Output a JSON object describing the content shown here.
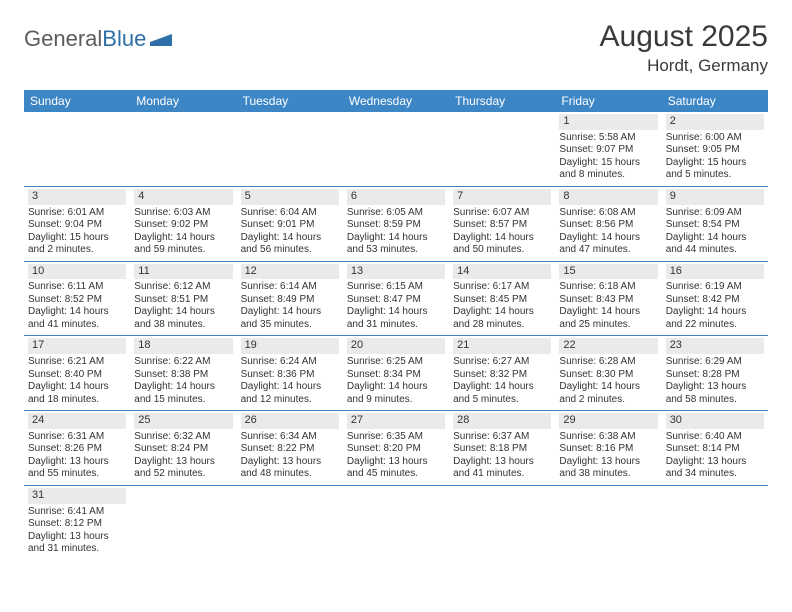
{
  "brand": {
    "part1": "General",
    "part2": "Blue",
    "logo_color": "#2f6fa8",
    "text_color": "#5c5c5c"
  },
  "title": "August 2025",
  "location": "Hordt, Germany",
  "colors": {
    "header_bg": "#3d86c6",
    "header_text": "#ffffff",
    "cell_border": "#3d86c6",
    "daynum_bg": "#eaeaea",
    "page_bg": "#ffffff"
  },
  "day_headers": [
    "Sunday",
    "Monday",
    "Tuesday",
    "Wednesday",
    "Thursday",
    "Friday",
    "Saturday"
  ],
  "weeks": [
    [
      {
        "day": "",
        "lines": [
          "",
          "",
          "",
          ""
        ]
      },
      {
        "day": "",
        "lines": [
          "",
          "",
          "",
          ""
        ]
      },
      {
        "day": "",
        "lines": [
          "",
          "",
          "",
          ""
        ]
      },
      {
        "day": "",
        "lines": [
          "",
          "",
          "",
          ""
        ]
      },
      {
        "day": "",
        "lines": [
          "",
          "",
          "",
          ""
        ]
      },
      {
        "day": "1",
        "lines": [
          "Sunrise: 5:58 AM",
          "Sunset: 9:07 PM",
          "Daylight: 15 hours",
          "and 8 minutes."
        ]
      },
      {
        "day": "2",
        "lines": [
          "Sunrise: 6:00 AM",
          "Sunset: 9:05 PM",
          "Daylight: 15 hours",
          "and 5 minutes."
        ]
      }
    ],
    [
      {
        "day": "3",
        "lines": [
          "Sunrise: 6:01 AM",
          "Sunset: 9:04 PM",
          "Daylight: 15 hours",
          "and 2 minutes."
        ]
      },
      {
        "day": "4",
        "lines": [
          "Sunrise: 6:03 AM",
          "Sunset: 9:02 PM",
          "Daylight: 14 hours",
          "and 59 minutes."
        ]
      },
      {
        "day": "5",
        "lines": [
          "Sunrise: 6:04 AM",
          "Sunset: 9:01 PM",
          "Daylight: 14 hours",
          "and 56 minutes."
        ]
      },
      {
        "day": "6",
        "lines": [
          "Sunrise: 6:05 AM",
          "Sunset: 8:59 PM",
          "Daylight: 14 hours",
          "and 53 minutes."
        ]
      },
      {
        "day": "7",
        "lines": [
          "Sunrise: 6:07 AM",
          "Sunset: 8:57 PM",
          "Daylight: 14 hours",
          "and 50 minutes."
        ]
      },
      {
        "day": "8",
        "lines": [
          "Sunrise: 6:08 AM",
          "Sunset: 8:56 PM",
          "Daylight: 14 hours",
          "and 47 minutes."
        ]
      },
      {
        "day": "9",
        "lines": [
          "Sunrise: 6:09 AM",
          "Sunset: 8:54 PM",
          "Daylight: 14 hours",
          "and 44 minutes."
        ]
      }
    ],
    [
      {
        "day": "10",
        "lines": [
          "Sunrise: 6:11 AM",
          "Sunset: 8:52 PM",
          "Daylight: 14 hours",
          "and 41 minutes."
        ]
      },
      {
        "day": "11",
        "lines": [
          "Sunrise: 6:12 AM",
          "Sunset: 8:51 PM",
          "Daylight: 14 hours",
          "and 38 minutes."
        ]
      },
      {
        "day": "12",
        "lines": [
          "Sunrise: 6:14 AM",
          "Sunset: 8:49 PM",
          "Daylight: 14 hours",
          "and 35 minutes."
        ]
      },
      {
        "day": "13",
        "lines": [
          "Sunrise: 6:15 AM",
          "Sunset: 8:47 PM",
          "Daylight: 14 hours",
          "and 31 minutes."
        ]
      },
      {
        "day": "14",
        "lines": [
          "Sunrise: 6:17 AM",
          "Sunset: 8:45 PM",
          "Daylight: 14 hours",
          "and 28 minutes."
        ]
      },
      {
        "day": "15",
        "lines": [
          "Sunrise: 6:18 AM",
          "Sunset: 8:43 PM",
          "Daylight: 14 hours",
          "and 25 minutes."
        ]
      },
      {
        "day": "16",
        "lines": [
          "Sunrise: 6:19 AM",
          "Sunset: 8:42 PM",
          "Daylight: 14 hours",
          "and 22 minutes."
        ]
      }
    ],
    [
      {
        "day": "17",
        "lines": [
          "Sunrise: 6:21 AM",
          "Sunset: 8:40 PM",
          "Daylight: 14 hours",
          "and 18 minutes."
        ]
      },
      {
        "day": "18",
        "lines": [
          "Sunrise: 6:22 AM",
          "Sunset: 8:38 PM",
          "Daylight: 14 hours",
          "and 15 minutes."
        ]
      },
      {
        "day": "19",
        "lines": [
          "Sunrise: 6:24 AM",
          "Sunset: 8:36 PM",
          "Daylight: 14 hours",
          "and 12 minutes."
        ]
      },
      {
        "day": "20",
        "lines": [
          "Sunrise: 6:25 AM",
          "Sunset: 8:34 PM",
          "Daylight: 14 hours",
          "and 9 minutes."
        ]
      },
      {
        "day": "21",
        "lines": [
          "Sunrise: 6:27 AM",
          "Sunset: 8:32 PM",
          "Daylight: 14 hours",
          "and 5 minutes."
        ]
      },
      {
        "day": "22",
        "lines": [
          "Sunrise: 6:28 AM",
          "Sunset: 8:30 PM",
          "Daylight: 14 hours",
          "and 2 minutes."
        ]
      },
      {
        "day": "23",
        "lines": [
          "Sunrise: 6:29 AM",
          "Sunset: 8:28 PM",
          "Daylight: 13 hours",
          "and 58 minutes."
        ]
      }
    ],
    [
      {
        "day": "24",
        "lines": [
          "Sunrise: 6:31 AM",
          "Sunset: 8:26 PM",
          "Daylight: 13 hours",
          "and 55 minutes."
        ]
      },
      {
        "day": "25",
        "lines": [
          "Sunrise: 6:32 AM",
          "Sunset: 8:24 PM",
          "Daylight: 13 hours",
          "and 52 minutes."
        ]
      },
      {
        "day": "26",
        "lines": [
          "Sunrise: 6:34 AM",
          "Sunset: 8:22 PM",
          "Daylight: 13 hours",
          "and 48 minutes."
        ]
      },
      {
        "day": "27",
        "lines": [
          "Sunrise: 6:35 AM",
          "Sunset: 8:20 PM",
          "Daylight: 13 hours",
          "and 45 minutes."
        ]
      },
      {
        "day": "28",
        "lines": [
          "Sunrise: 6:37 AM",
          "Sunset: 8:18 PM",
          "Daylight: 13 hours",
          "and 41 minutes."
        ]
      },
      {
        "day": "29",
        "lines": [
          "Sunrise: 6:38 AM",
          "Sunset: 8:16 PM",
          "Daylight: 13 hours",
          "and 38 minutes."
        ]
      },
      {
        "day": "30",
        "lines": [
          "Sunrise: 6:40 AM",
          "Sunset: 8:14 PM",
          "Daylight: 13 hours",
          "and 34 minutes."
        ]
      }
    ],
    [
      {
        "day": "31",
        "lines": [
          "Sunrise: 6:41 AM",
          "Sunset: 8:12 PM",
          "Daylight: 13 hours",
          "and 31 minutes."
        ]
      },
      {
        "day": "",
        "lines": [
          "",
          "",
          "",
          ""
        ]
      },
      {
        "day": "",
        "lines": [
          "",
          "",
          "",
          ""
        ]
      },
      {
        "day": "",
        "lines": [
          "",
          "",
          "",
          ""
        ]
      },
      {
        "day": "",
        "lines": [
          "",
          "",
          "",
          ""
        ]
      },
      {
        "day": "",
        "lines": [
          "",
          "",
          "",
          ""
        ]
      },
      {
        "day": "",
        "lines": [
          "",
          "",
          "",
          ""
        ]
      }
    ]
  ]
}
